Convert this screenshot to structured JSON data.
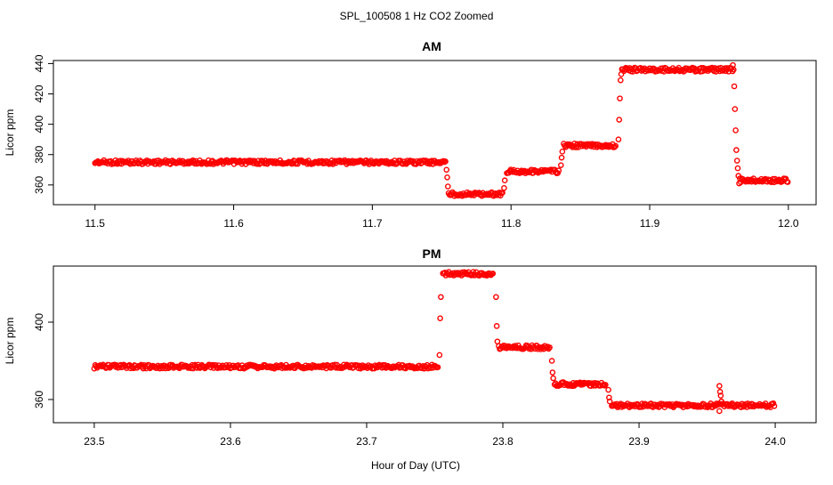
{
  "figure": {
    "title": "SPL_100508  1 Hz CO2 Zoomed",
    "xlabel": "Hour of Day (UTC)"
  },
  "chart_data": [
    {
      "type": "scatter",
      "title": "AM",
      "xlabel": "",
      "ylabel": "Licor ppm",
      "xlim": [
        11.47,
        12.02
      ],
      "ylim": [
        347,
        442
      ],
      "xticks": [
        11.5,
        11.6,
        11.7,
        11.8,
        11.9,
        12.0
      ],
      "xtick_labels": [
        "11.5",
        "11.6",
        "11.7",
        "11.8",
        "11.9",
        "12.0"
      ],
      "yticks": [
        360,
        380,
        400,
        420,
        440
      ],
      "ytick_labels": [
        "360",
        "380",
        "400",
        "420",
        "440"
      ],
      "grid": false,
      "marker_color": "#ff0000",
      "series": [
        {
          "segments": [
            {
              "x_start": 11.5,
              "x_end": 11.753,
              "y": 375
            },
            {
              "x_start": 11.755,
              "x_end": 11.794,
              "y": 354
            },
            {
              "x_start": 11.797,
              "x_end": 11.835,
              "y": 369
            },
            {
              "x_start": 11.838,
              "x_end": 11.876,
              "y": 386
            },
            {
              "x_start": 11.88,
              "x_end": 11.96,
              "y": 436
            },
            {
              "x_start": 11.965,
              "x_end": 12.0,
              "y": 363
            }
          ],
          "transition_points": [
            {
              "x": 11.7535,
              "y": 370
            },
            {
              "x": 11.754,
              "y": 365
            },
            {
              "x": 11.7545,
              "y": 359
            },
            {
              "x": 11.795,
              "y": 358
            },
            {
              "x": 11.7955,
              "y": 363
            },
            {
              "x": 11.836,
              "y": 373
            },
            {
              "x": 11.8365,
              "y": 378
            },
            {
              "x": 11.837,
              "y": 382
            },
            {
              "x": 11.8775,
              "y": 390
            },
            {
              "x": 11.878,
              "y": 403
            },
            {
              "x": 11.8785,
              "y": 417
            },
            {
              "x": 11.879,
              "y": 429
            },
            {
              "x": 11.8795,
              "y": 433
            },
            {
              "x": 11.96,
              "y": 439
            },
            {
              "x": 11.9605,
              "y": 436
            },
            {
              "x": 11.961,
              "y": 425
            },
            {
              "x": 11.9615,
              "y": 410
            },
            {
              "x": 11.962,
              "y": 396
            },
            {
              "x": 11.9625,
              "y": 383
            },
            {
              "x": 11.963,
              "y": 376
            },
            {
              "x": 11.9635,
              "y": 371
            },
            {
              "x": 11.964,
              "y": 366
            },
            {
              "x": 11.9645,
              "y": 361
            }
          ]
        }
      ]
    },
    {
      "type": "scatter",
      "title": "PM",
      "xlabel": "Hour of Day (UTC)",
      "ylabel": "Licor ppm",
      "xlim": [
        23.47,
        24.03
      ],
      "ylim": [
        348,
        429
      ],
      "xticks": [
        23.5,
        23.6,
        23.7,
        23.8,
        23.9,
        24.0
      ],
      "xtick_labels": [
        "23.5",
        "23.6",
        "23.7",
        "23.8",
        "23.9",
        "24.0"
      ],
      "yticks": [
        360,
        400
      ],
      "ytick_labels": [
        "360",
        "400"
      ],
      "grid": false,
      "marker_color": "#ff0000",
      "series": [
        {
          "segments": [
            {
              "x_start": 23.5,
              "x_end": 23.753,
              "y": 377
            },
            {
              "x_start": 23.756,
              "x_end": 23.793,
              "y": 425
            },
            {
              "x_start": 23.797,
              "x_end": 23.835,
              "y": 387
            },
            {
              "x_start": 23.838,
              "x_end": 23.876,
              "y": 368
            },
            {
              "x_start": 23.88,
              "x_end": 24.0,
              "y": 357
            }
          ],
          "transition_points": [
            {
              "x": 23.7535,
              "y": 383
            },
            {
              "x": 23.754,
              "y": 402
            },
            {
              "x": 23.7545,
              "y": 413
            },
            {
              "x": 23.795,
              "y": 413
            },
            {
              "x": 23.7955,
              "y": 398
            },
            {
              "x": 23.796,
              "y": 390
            },
            {
              "x": 23.836,
              "y": 380
            },
            {
              "x": 23.8365,
              "y": 374
            },
            {
              "x": 23.837,
              "y": 371
            },
            {
              "x": 23.8775,
              "y": 365
            },
            {
              "x": 23.878,
              "y": 361
            },
            {
              "x": 23.8785,
              "y": 359
            },
            {
              "x": 23.959,
              "y": 367
            },
            {
              "x": 23.9595,
              "y": 364
            },
            {
              "x": 23.96,
              "y": 362
            },
            {
              "x": 23.9605,
              "y": 359
            },
            {
              "x": 23.959,
              "y": 354
            }
          ]
        }
      ]
    }
  ]
}
